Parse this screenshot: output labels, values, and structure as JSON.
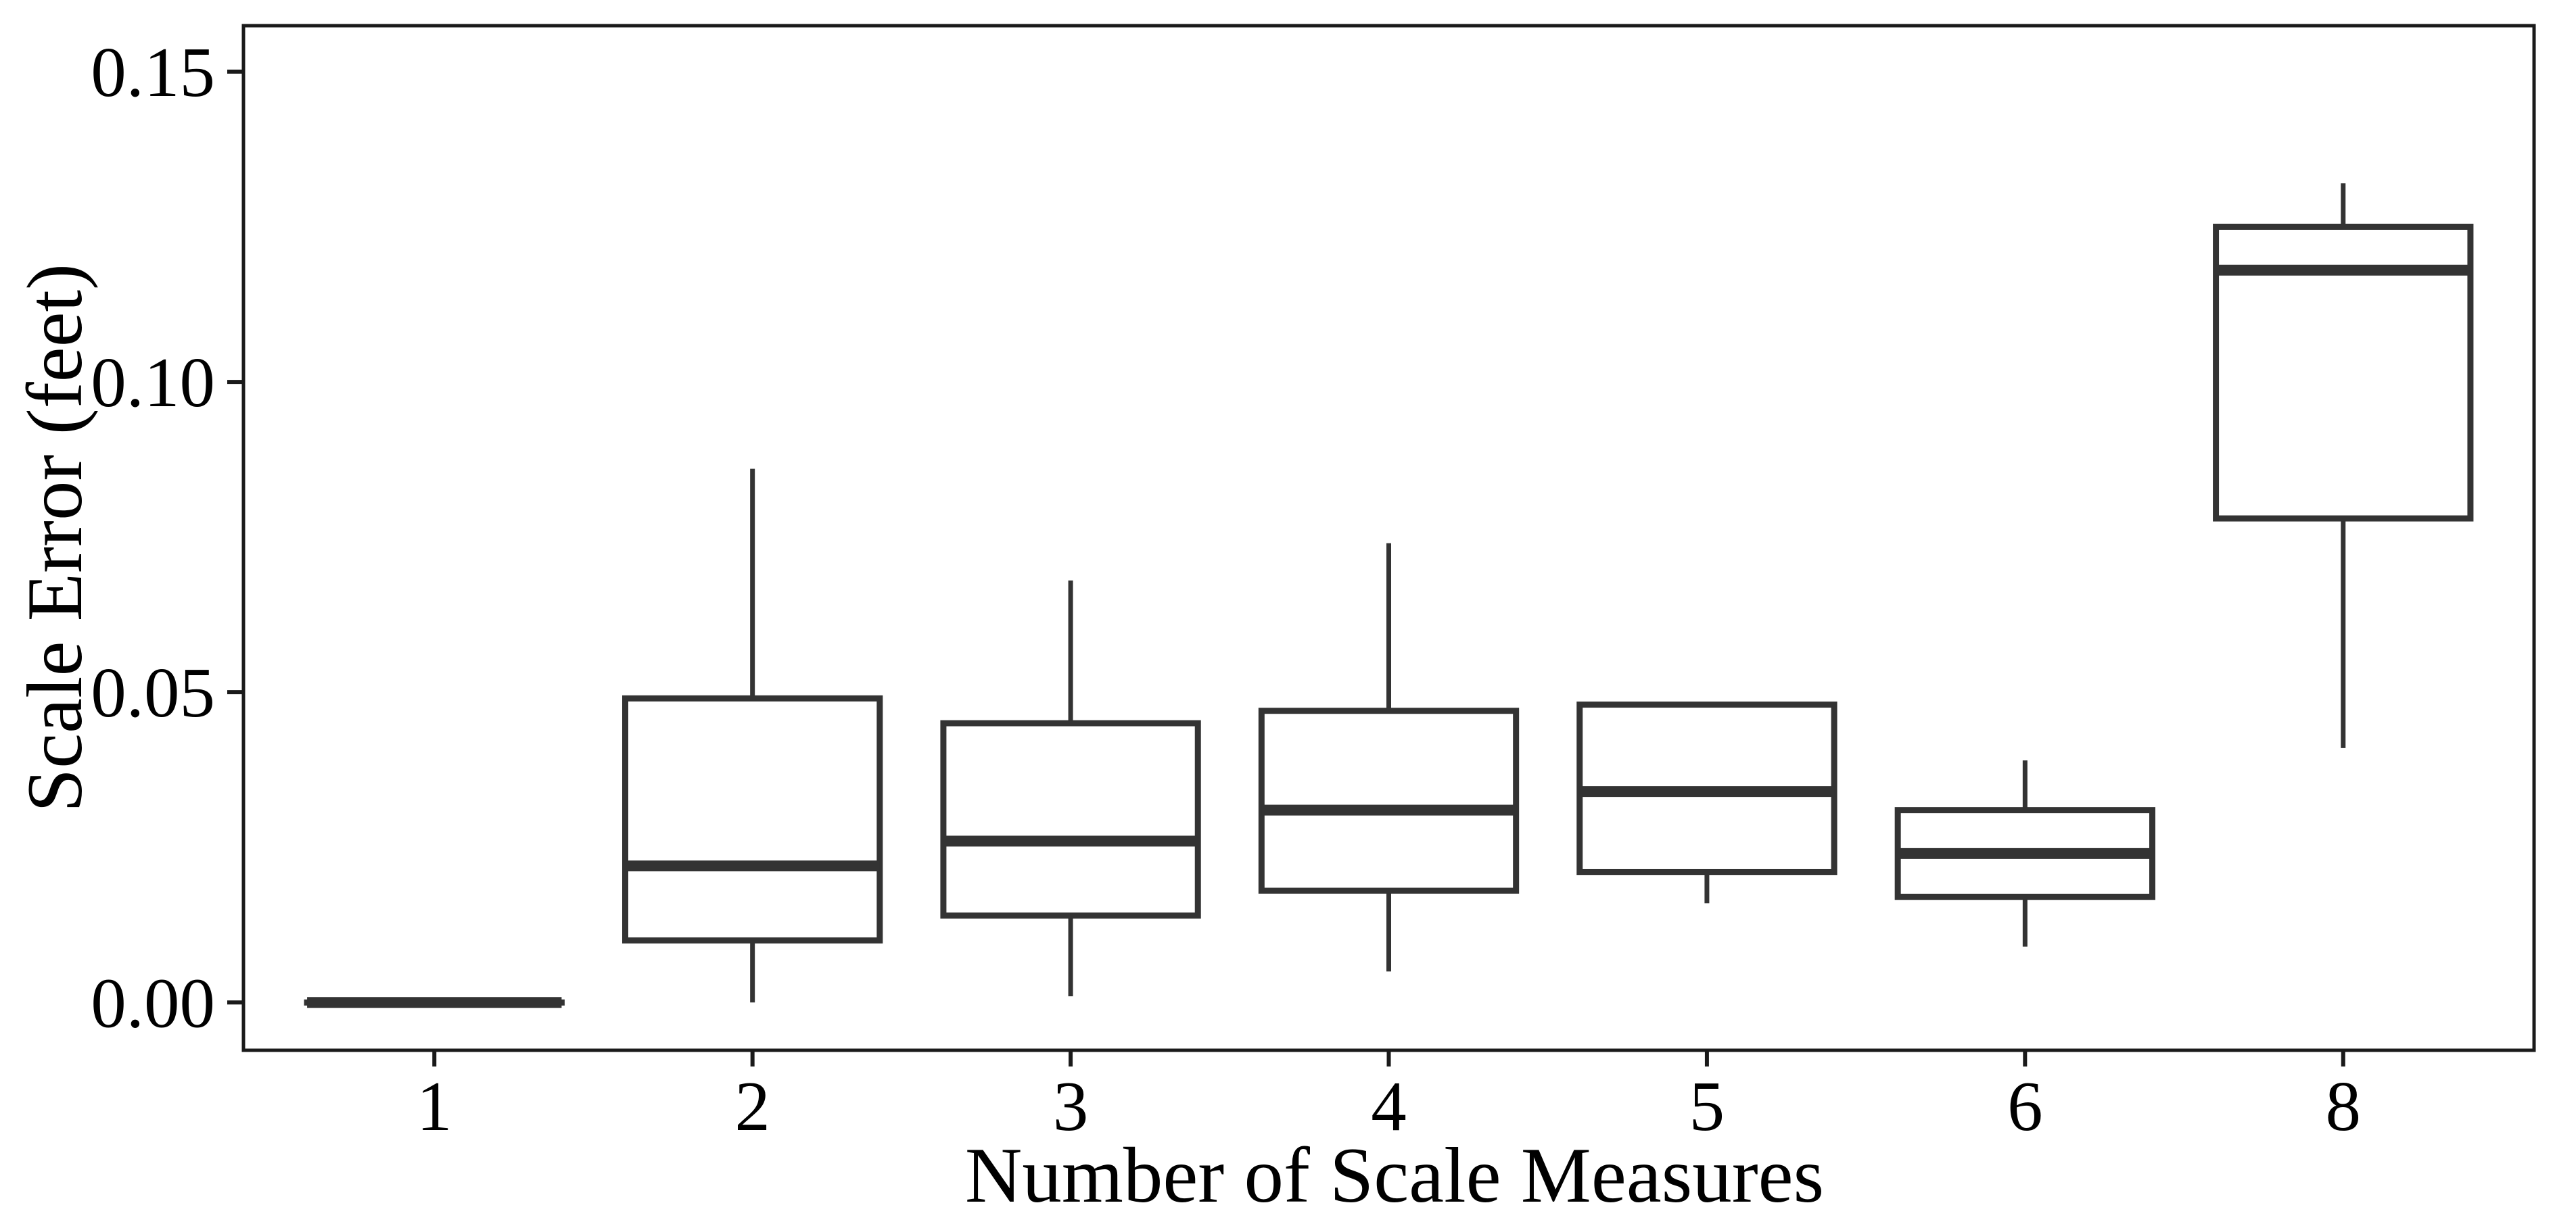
{
  "figure": {
    "background": "#ffffff",
    "panel_border_color": "#1a1a1a",
    "box_stroke_color": "#333333",
    "median_stroke_color": "#333333",
    "whisker_stroke_color": "#333333",
    "tick_color": "#1a1a1a",
    "text_color": "#000000"
  },
  "chart_data": {
    "type": "box",
    "title": "",
    "xlabel": "Number of Scale Measures",
    "ylabel": "Scale Error (feet)",
    "categories": [
      "1",
      "2",
      "3",
      "4",
      "5",
      "6",
      "8"
    ],
    "series": [
      {
        "category": "1",
        "min": 0.0,
        "q1": 0.0,
        "median": 0.0,
        "q3": 0.0,
        "max": 0.0
      },
      {
        "category": "2",
        "min": 0.0,
        "q1": 0.01,
        "median": 0.022,
        "q3": 0.049,
        "max": 0.086
      },
      {
        "category": "3",
        "min": 0.001,
        "q1": 0.014,
        "median": 0.026,
        "q3": 0.045,
        "max": 0.068
      },
      {
        "category": "4",
        "min": 0.005,
        "q1": 0.018,
        "median": 0.031,
        "q3": 0.047,
        "max": 0.074
      },
      {
        "category": "5",
        "min": 0.016,
        "q1": 0.021,
        "median": 0.034,
        "q3": 0.048,
        "max": 0.048
      },
      {
        "category": "6",
        "min": 0.009,
        "q1": 0.017,
        "median": 0.024,
        "q3": 0.031,
        "max": 0.039
      },
      {
        "category": "8",
        "min": 0.041,
        "q1": 0.078,
        "median": 0.118,
        "q3": 0.125,
        "max": 0.132
      }
    ],
    "ylim": [
      -0.0077,
      0.1574
    ],
    "yticks": {
      "values": [
        0.0,
        0.05,
        0.1,
        0.15
      ],
      "labels": [
        "0.00",
        "0.05",
        "0.10",
        "0.15"
      ]
    },
    "grid": "off",
    "legend": "none"
  }
}
